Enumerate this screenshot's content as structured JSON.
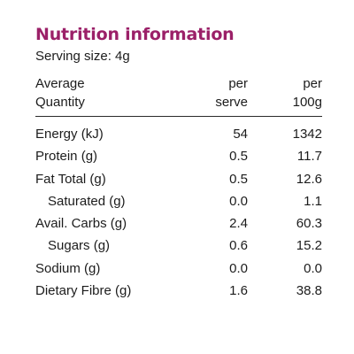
{
  "panel": {
    "title": "Nutrition information",
    "title_color": "#9b2068",
    "serving_size": "Serving size: 4g",
    "header": {
      "label_line1": "Average",
      "label_line2": "Quantity",
      "serve_line1": "per",
      "serve_line2": "serve",
      "per100_line1": "per",
      "per100_line2": "100g"
    },
    "rows": [
      {
        "label": "Energy (kJ)",
        "per_serve": "54",
        "per_100g": "1342",
        "indent": false
      },
      {
        "label": "Protein (g)",
        "per_serve": "0.5",
        "per_100g": "11.7",
        "indent": false
      },
      {
        "label": "Fat Total (g)",
        "per_serve": "0.5",
        "per_100g": "12.6",
        "indent": false
      },
      {
        "label": "Saturated (g)",
        "per_serve": "0.0",
        "per_100g": "1.1",
        "indent": true
      },
      {
        "label": "Avail. Carbs (g)",
        "per_serve": "2.4",
        "per_100g": "60.3",
        "indent": false
      },
      {
        "label": "Sugars (g)",
        "per_serve": "0.6",
        "per_100g": "15.2",
        "indent": true
      },
      {
        "label": "Sodium (g)",
        "per_serve": "0.0",
        "per_100g": "0.0",
        "indent": false
      },
      {
        "label": "Dietary Fibre (g)",
        "per_serve": "1.6",
        "per_100g": "38.8",
        "indent": false
      }
    ]
  }
}
